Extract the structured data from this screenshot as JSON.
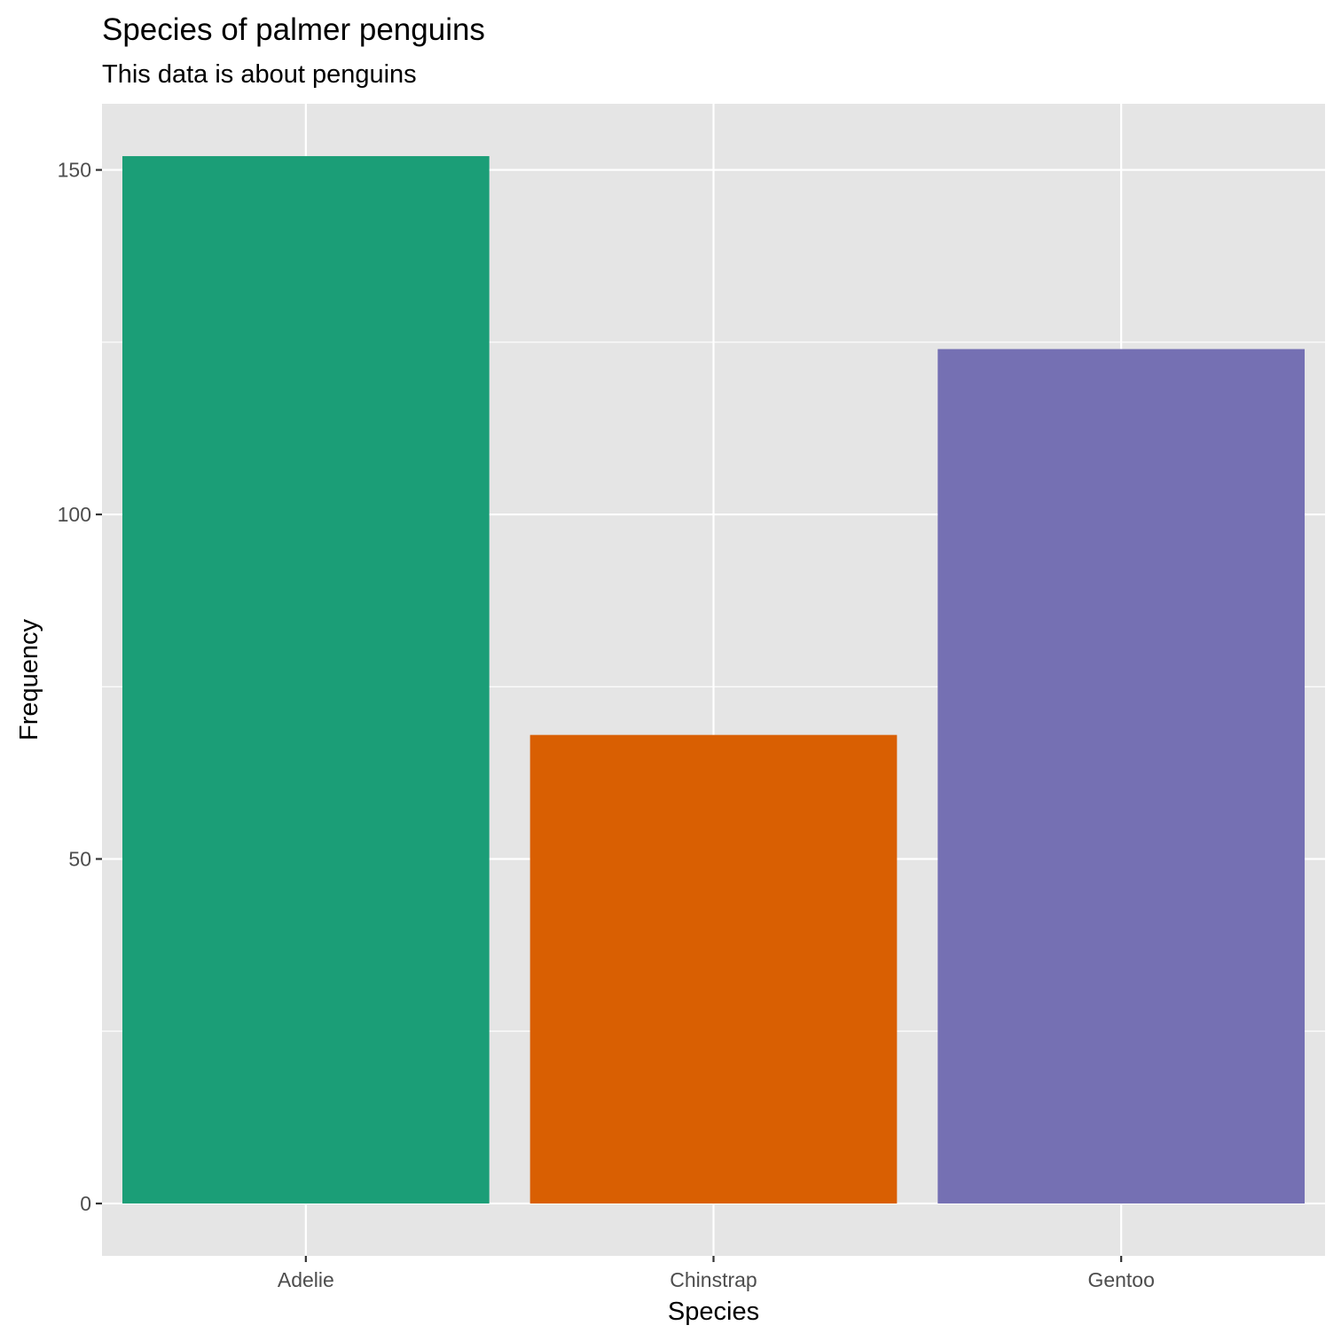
{
  "chart_data": {
    "type": "bar",
    "title": "Species of palmer penguins",
    "subtitle": "This data is about penguins",
    "xlabel": "Species",
    "ylabel": "Frequency",
    "categories": [
      "Adelie",
      "Chinstrap",
      "Gentoo"
    ],
    "values": [
      152,
      68,
      124
    ],
    "colors": [
      "#1b9e77",
      "#d95f02",
      "#7570b3"
    ],
    "ylim": [
      -7.6,
      159.6
    ],
    "yticks": [
      0,
      50,
      100,
      150
    ],
    "ytick_labels": [
      "0",
      "50",
      "100",
      "150"
    ],
    "y_minor_ticks": [
      25,
      75,
      125
    ],
    "grid": true,
    "legend": "none",
    "panel_background": "#e5e5e5",
    "grid_color": "#ffffff"
  }
}
